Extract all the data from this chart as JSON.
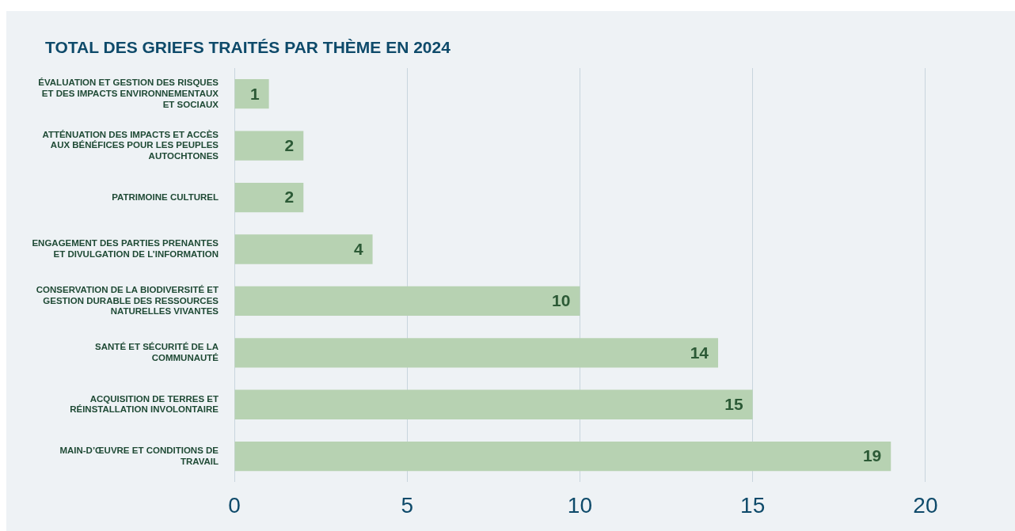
{
  "chart_data": {
    "type": "bar",
    "orientation": "horizontal",
    "title": "TOTAL DES GRIEFS TRAITÉS PAR THÈME EN 2024",
    "categories": [
      "ÉVALUATION ET GESTION DES RISQUES ET DES IMPACTS ENVIRONNEMENTAUX ET SOCIAUX",
      "ATTÉNUATION DES IMPACTS ET ACCÈS AUX BÉNÉFICES POUR LES PEUPLES AUTOCHTONES",
      "PATRIMOINE CULTUREL",
      "ENGAGEMENT DES PARTIES PRENANTES ET DIVULGATION DE L’INFORMATION",
      "CONSERVATION DE LA BIODIVERSITÉ ET GESTION DURABLE DES RESSOURCES NATURELLES VIVANTES",
      "SANTÉ ET SÉCURITÉ DE LA COMMUNAUTÉ",
      "ACQUISITION DE TERRES ET RÉINSTALLATION INVOLONTAIRE",
      "MAIN-D’ŒUVRE ET CONDITIONS DE TRAVAIL"
    ],
    "values": [
      1,
      2,
      2,
      4,
      10,
      14,
      15,
      19
    ],
    "color": "#b7d2b2",
    "data_labels": true,
    "xlim": [
      0,
      22.5
    ],
    "xticks": [
      0,
      5,
      10,
      15,
      20
    ],
    "grid": "x",
    "legend": false
  }
}
